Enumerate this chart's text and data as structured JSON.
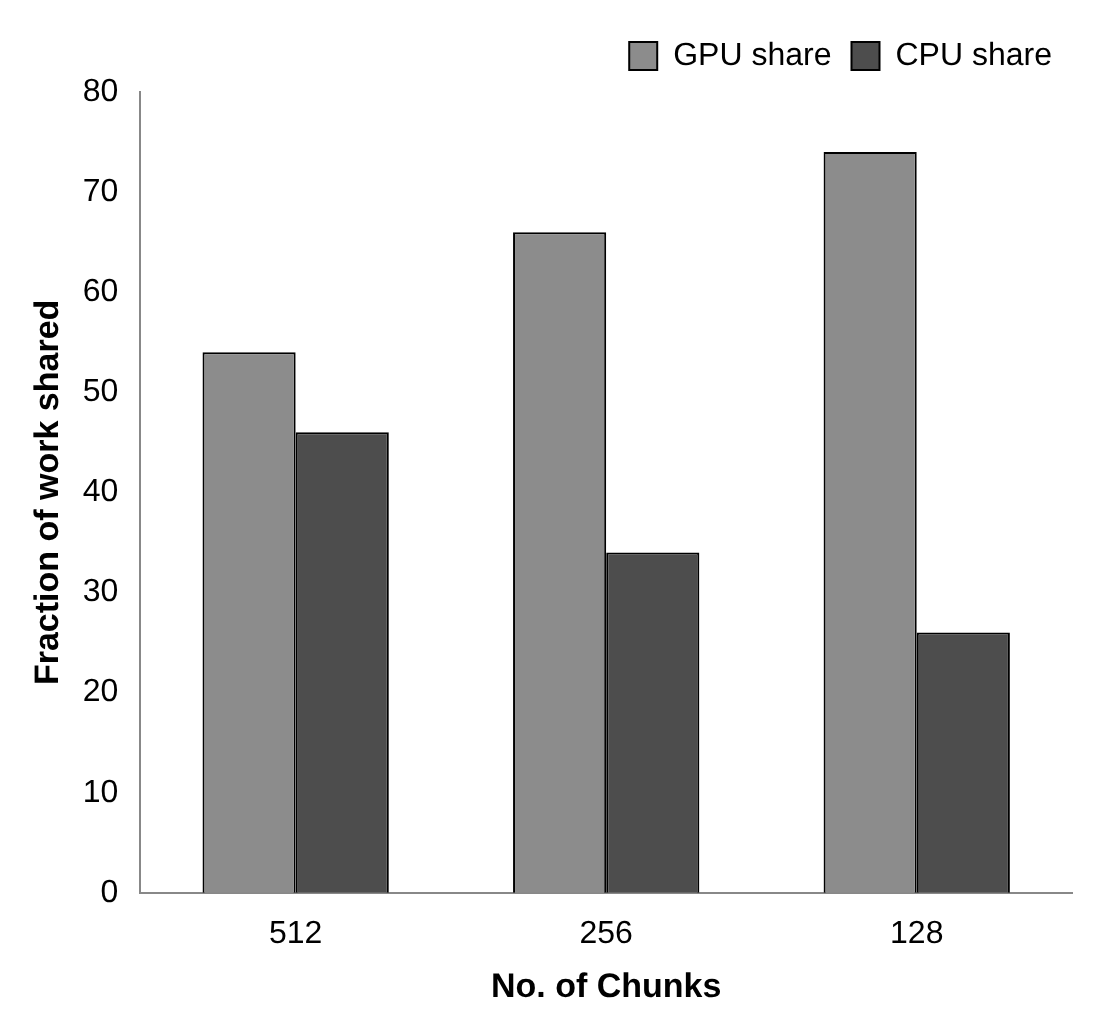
{
  "chart_data": {
    "type": "bar",
    "xlabel": "No. of Chunks",
    "ylabel": "Fraction of work shared",
    "categories": [
      "512",
      "256",
      "128"
    ],
    "series": [
      {
        "name": "GPU share",
        "color": "#8c8c8c",
        "values": [
          54,
          66,
          74
        ]
      },
      {
        "name": "CPU share",
        "color": "#4d4d4d",
        "values": [
          46,
          34,
          26
        ]
      }
    ],
    "ylim": [
      0,
      80
    ],
    "yticks": [
      0,
      10,
      20,
      30,
      40,
      50,
      60,
      70,
      80
    ],
    "grid": false,
    "legend": "top right"
  }
}
